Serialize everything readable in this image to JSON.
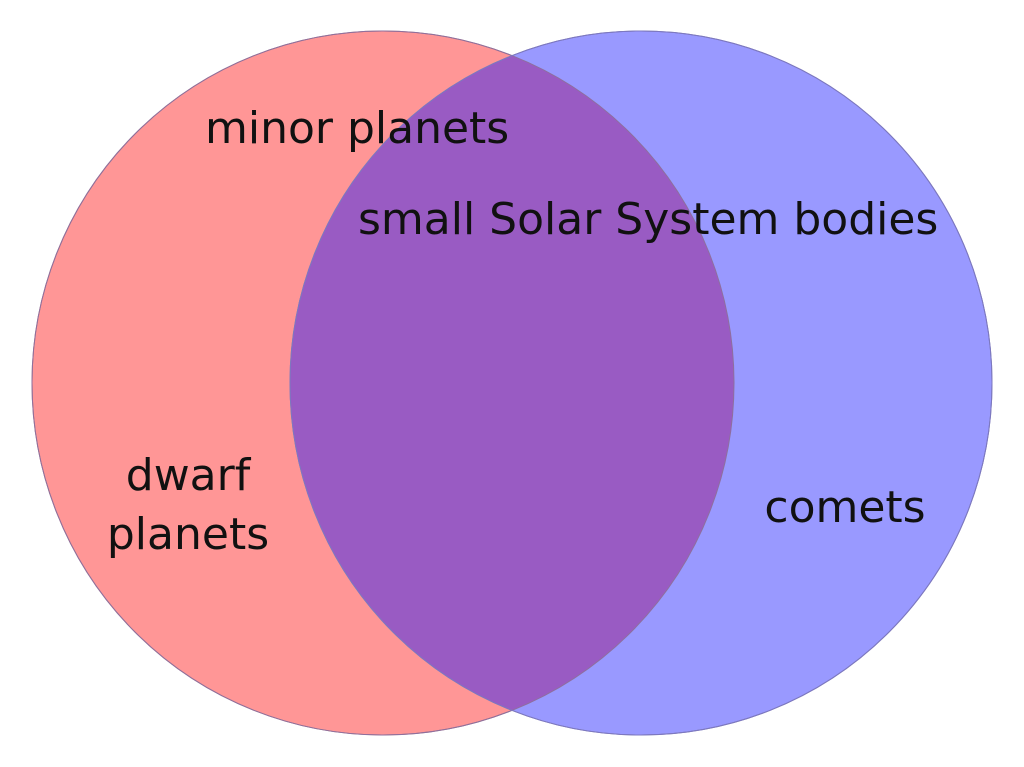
{
  "diagram": {
    "type": "venn",
    "sets": [
      {
        "id": "minor-planets",
        "label": "minor planets",
        "color": "#ff9696"
      },
      {
        "id": "small-bodies",
        "label": "small Solar System bodies",
        "color": "#9999ff"
      }
    ],
    "intersection_color": "#995bc3",
    "outline_color": "#9a7a9a",
    "regions": {
      "left_only": [
        "dwarf",
        "planets"
      ],
      "right_only": "comets"
    }
  }
}
